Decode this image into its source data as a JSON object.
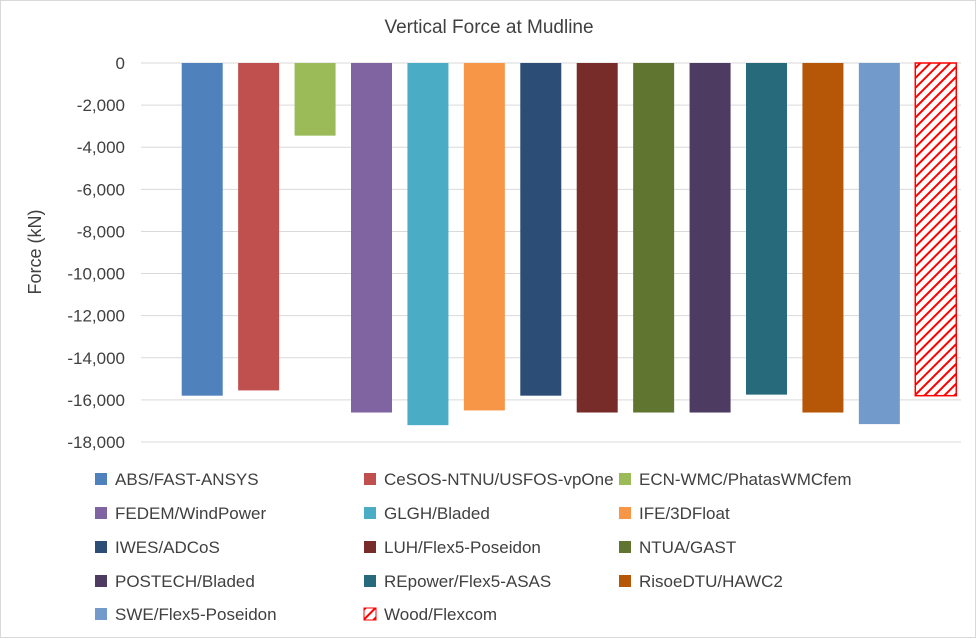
{
  "chart_data": {
    "type": "bar",
    "title": "Vertical Force at Mudline",
    "xlabel": "",
    "ylabel": "Force (kN)",
    "ylim": [
      -18000,
      0
    ],
    "yticks": [
      0,
      -2000,
      -4000,
      -6000,
      -8000,
      -10000,
      -12000,
      -14000,
      -16000,
      -18000
    ],
    "ytick_labels": [
      "0",
      "-2,000",
      "-4,000",
      "-6,000",
      "-8,000",
      "-10,000",
      "-12,000",
      "-14,000",
      "-16,000",
      "-18,000"
    ],
    "grid": true,
    "legend_position": "bottom",
    "categories": [
      "ABS/FAST-ANSYS",
      "CeSOS-NTNU/USFOS-vpOne",
      "ECN-WMC/PhatasWMCfem",
      "FEDEM/WindPower",
      "GLGH/Bladed",
      "IFE/3DFloat",
      "IWES/ADCoS",
      "LUH/Flex5-Poseidon",
      "NTUA/GAST",
      "POSTECH/Bladed",
      "REpower/Flex5-ASAS",
      "RisoeDTU/HAWC2",
      "SWE/Flex5-Poseidon",
      "Wood/Flexcom"
    ],
    "values": [
      -15800,
      -15550,
      -3450,
      -16600,
      -17200,
      -16500,
      -15800,
      -16600,
      -16600,
      -16600,
      -15750,
      -16600,
      -17150,
      -15800
    ],
    "colors": [
      "#4f81bd",
      "#c0504d",
      "#9bbb59",
      "#8064a2",
      "#4bacc6",
      "#f79646",
      "#2c4d75",
      "#772c2a",
      "#5f7530",
      "#4d3b62",
      "#276a7c",
      "#b65708",
      "#729aca",
      "#ff0000"
    ],
    "hatched": [
      false,
      false,
      false,
      false,
      false,
      false,
      false,
      false,
      false,
      false,
      false,
      false,
      false,
      true
    ]
  }
}
